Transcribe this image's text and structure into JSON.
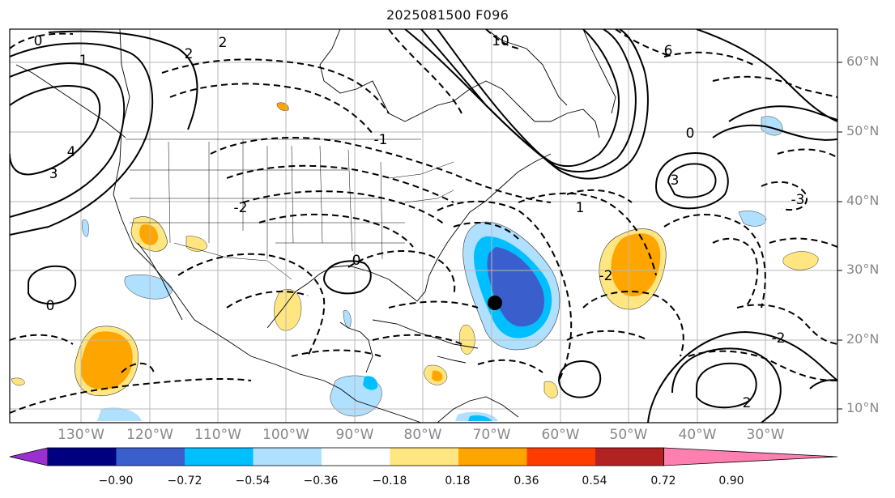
{
  "title": "2025081500 F096",
  "lat_labels": [
    "60°N",
    "50°N",
    "40°N",
    "30°N",
    "20°N",
    "10°N"
  ],
  "lon_labels": [
    "130°W",
    "120°W",
    "110°W",
    "100°W",
    "90°W",
    "80°W",
    "70°W",
    "60°W",
    "50°W",
    "40°W",
    "30°W"
  ],
  "colorbar": {
    "ticks": [
      "−0.90",
      "−0.72",
      "−0.54",
      "−0.36",
      "−0.18",
      "0.18",
      "0.36",
      "0.54",
      "0.72",
      "0.90"
    ],
    "colors": [
      "#9b30d0",
      "#000080",
      "#3a5fcd",
      "#00bfff",
      "#b0e0ff",
      "#ffffff",
      "#ffe680",
      "#ffa500",
      "#ff3c00",
      "#b22222",
      "#ff7fb0"
    ]
  },
  "contour_labels": [
    "0",
    "2",
    "1",
    "4",
    "3",
    "-1",
    "10",
    "6",
    "-2",
    "-3",
    "0",
    "2",
    "1",
    "2",
    "3",
    "-2",
    "0",
    "0",
    "-2"
  ],
  "marker": "storm-center-dot"
}
